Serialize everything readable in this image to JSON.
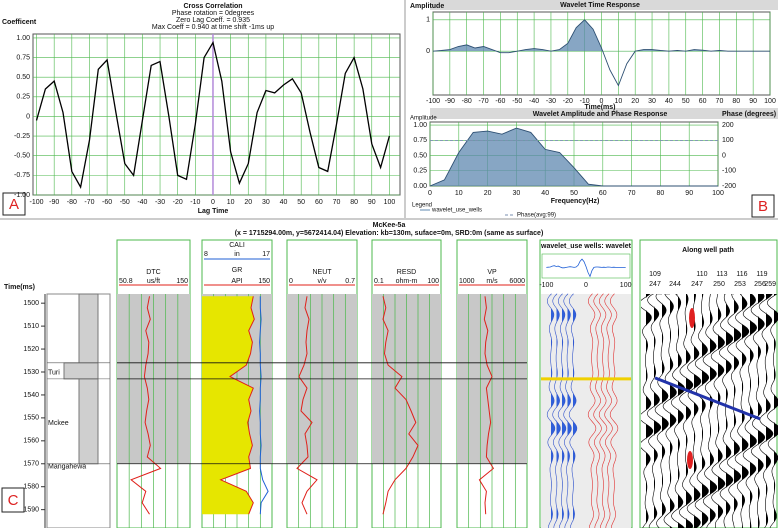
{
  "chart_data": [
    {
      "type": "line",
      "title": "Cross Correlation",
      "annotations": [
        "Phase rotation = 0degrees",
        "Zero Lag Coeff. = 0.935",
        "Max Coeff = 0.940 at time shift -1ms up"
      ],
      "x_label": "Lag Time",
      "y_label": "Coefficent",
      "color": "#000000",
      "grid": true,
      "x": [
        -100,
        -95,
        -90,
        -85,
        -80,
        -75,
        -70,
        -65,
        -60,
        -55,
        -50,
        -45,
        -40,
        -35,
        -30,
        -25,
        -20,
        -15,
        -10,
        -5,
        0,
        5,
        10,
        15,
        20,
        25,
        30,
        35,
        40,
        45,
        50,
        55,
        60,
        65,
        70,
        75,
        80,
        85,
        90,
        95,
        100
      ],
      "values": [
        -0.05,
        0.35,
        0.45,
        0.05,
        -0.7,
        -0.9,
        -0.3,
        0.6,
        0.72,
        0.05,
        -0.6,
        -0.75,
        -0.05,
        0.65,
        0.7,
        0,
        -0.75,
        -0.8,
        -0.1,
        0.75,
        0.94,
        0.45,
        -0.45,
        -0.85,
        -0.6,
        0.05,
        0.33,
        0.3,
        0.4,
        0.48,
        0.3,
        -0.2,
        -0.65,
        -0.7,
        -0.1,
        0.55,
        0.75,
        0.35,
        -0.35,
        -0.65,
        -0.25
      ],
      "xlim": [
        -102,
        106
      ],
      "xticks": [
        -100,
        -90,
        -80,
        -70,
        -60,
        -50,
        -40,
        -30,
        -20,
        -10,
        0,
        10,
        20,
        30,
        40,
        50,
        60,
        70,
        80,
        90,
        100
      ],
      "ylim": [
        -1.0,
        1.05
      ],
      "yticks": [
        {
          "value": 1,
          "label": "1.00"
        },
        0.75,
        {
          "value": 0.5,
          "label": "0.50"
        },
        0.25,
        0,
        -0.25,
        {
          "value": -0.5,
          "label": "-0.50"
        },
        -0.75,
        {
          "value": -1,
          "label": "-1.00"
        }
      ]
    },
    {
      "type": "area",
      "title": "Wavelet Time Response",
      "x_label": "Time(ms)",
      "y_label": "Amplitude",
      "color": "#5f88b0",
      "grid": true,
      "x": [
        -100,
        -95,
        -90,
        -85,
        -80,
        -75,
        -70,
        -65,
        -60,
        -55,
        -50,
        -45,
        -40,
        -35,
        -30,
        -25,
        -20,
        -15,
        -10,
        -5,
        0,
        5,
        10,
        15,
        20,
        25,
        30,
        35,
        40,
        45,
        50,
        55,
        60,
        65,
        70,
        75,
        80,
        85,
        90,
        95,
        100
      ],
      "values": [
        0,
        0.02,
        0.05,
        0.15,
        0.2,
        0.1,
        0.15,
        0.05,
        -0.05,
        -0.05,
        0,
        0.05,
        0.08,
        0.05,
        0,
        0.05,
        0.25,
        0.75,
        1.0,
        0.7,
        0.1,
        -0.6,
        -1.1,
        -0.4,
        0,
        0.05,
        0.05,
        0.02,
        0,
        0.02,
        0,
        0.05,
        0.03,
        0,
        0.02,
        0,
        0,
        0,
        0,
        0,
        0
      ],
      "xlim": [
        -100,
        100
      ],
      "xticks": [
        -100,
        -90,
        -80,
        -70,
        -60,
        -50,
        -40,
        -30,
        -20,
        -10,
        0,
        10,
        20,
        30,
        40,
        50,
        60,
        70,
        80,
        90,
        100
      ],
      "ylim": [
        -1.4,
        1.25
      ],
      "yticks": [
        1,
        0
      ]
    },
    {
      "type": "area",
      "title": "Wavelet Amplitude and Phase Response",
      "x_label": "Frequency(Hz)",
      "y_label": "Amplitude",
      "y2_label": "Phase (degrees)",
      "legend_title": "Legend",
      "grid": true,
      "x": [
        0,
        5,
        10,
        15,
        20,
        25,
        30,
        35,
        40,
        45,
        50,
        55,
        60,
        65,
        70,
        75,
        80,
        85,
        90,
        95,
        100
      ],
      "series": [
        {
          "name": "wavelet_use_wells",
          "color": "#5f88b0",
          "values": [
            0,
            0.1,
            0.55,
            0.88,
            0.9,
            0.85,
            0.95,
            0.88,
            0.6,
            0.55,
            0.3,
            0.03,
            0,
            0,
            0,
            0,
            0,
            0,
            0,
            0,
            0
          ]
        },
        {
          "name": "Phase(avg:99)",
          "color": "#7a8fb0",
          "axis": "y2",
          "dashed": true,
          "values": [
            99,
            99,
            99,
            99,
            99,
            99,
            99,
            99,
            99,
            99,
            99,
            99,
            99,
            99,
            99,
            99,
            99,
            99,
            99,
            99,
            99
          ]
        }
      ],
      "xlim": [
        0,
        100
      ],
      "xticks": [
        0,
        10,
        20,
        30,
        40,
        50,
        60,
        70,
        80,
        90,
        100
      ],
      "ylim": [
        0,
        1.05
      ],
      "yticks": [
        {
          "value": 0,
          "label": "0.00"
        },
        0.25,
        {
          "value": 0.5,
          "label": "0.50"
        },
        0.75,
        {
          "value": 1,
          "label": "1.00"
        }
      ],
      "y2lim": [
        -200,
        220
      ],
      "y2ticks": [
        -200,
        -100,
        0,
        100,
        200
      ]
    },
    {
      "type": "well_log",
      "title": "McKee-5a",
      "subtitle": "(x = 1715294.00m, y=5672414.04) Elevation: kb=130m, suface=0m, SRD:0m (same as surface)",
      "y_label": "Time(ms)",
      "ylim": [
        1496,
        1598
      ],
      "yticks": [
        1500,
        1510,
        1520,
        1530,
        1540,
        1550,
        1560,
        1570,
        1580,
        1590
      ],
      "y": [
        1497,
        1502,
        1507,
        1512,
        1517,
        1522,
        1527,
        1532,
        1537,
        1542,
        1547,
        1552,
        1557,
        1562,
        1567,
        1572,
        1577,
        1582,
        1587,
        1592
      ],
      "tops": [
        {
          "name": "Turi",
          "time": 1526
        },
        {
          "name": "Mckee",
          "time": 1533
        },
        {
          "name": "Mangahewa",
          "time": 1570
        }
      ],
      "tracks": [
        {
          "name": "DTC",
          "unit": "us/ft",
          "xlim": [
            50.8,
            150
          ],
          "color": "#e0201a",
          "values": [
            95,
            92,
            96,
            90,
            94,
            93,
            90,
            88,
            92,
            94,
            91,
            89,
            93,
            96,
            92,
            110,
            70,
            90,
            85,
            95
          ]
        },
        {
          "name": "CALI",
          "unit": "in",
          "xlim": [
            8,
            17
          ],
          "color": "#1f5fd6",
          "values": [
            15.5,
            15.5,
            15.6,
            15.5,
            15.4,
            15.5,
            15.5,
            15.6,
            15.5,
            15.5,
            15.4,
            15.5,
            15.5,
            15.6,
            15.5,
            15.5,
            15.8,
            16.5,
            15.6,
            15.5
          ]
        },
        {
          "name": "GR",
          "unit": "API",
          "xlim": [
            0,
            150
          ],
          "color": "#e0201a",
          "fill": "#e6e600",
          "values": [
            110,
            105,
            112,
            100,
            108,
            104,
            95,
            60,
            110,
            100,
            105,
            98,
            102,
            108,
            100,
            104,
            40,
            95,
            110,
            100
          ]
        },
        {
          "name": "NEUT",
          "unit": "v/v",
          "xlim": [
            0,
            0.7
          ],
          "color": "#e0201a",
          "values": [
            0.2,
            0.18,
            0.22,
            0.2,
            0.19,
            0.2,
            0.17,
            0.12,
            0.2,
            0.16,
            0.14,
            0.25,
            0.18,
            0.2,
            0.21,
            0.1,
            0.3,
            0.2,
            0.15,
            0.2
          ]
        },
        {
          "name": "RESD",
          "unit": "ohm-m",
          "xlim": [
            0.1,
            100
          ],
          "log": true,
          "color": "#e0201a",
          "values": [
            0.3,
            0.4,
            0.3,
            0.5,
            0.4,
            0.35,
            0.5,
            2,
            1,
            3,
            5,
            8,
            4,
            10,
            6,
            3,
            1,
            0.5,
            0.4,
            0.3
          ]
        },
        {
          "name": "VP",
          "unit": "m/s",
          "xlim": [
            1000,
            6000
          ],
          "color": "#e0201a",
          "values": [
            3000,
            3100,
            2950,
            3200,
            3050,
            3000,
            3150,
            3500,
            3100,
            3200,
            3300,
            3400,
            3250,
            3150,
            3100,
            3600,
            2600,
            3100,
            3000,
            3050
          ]
        }
      ],
      "synthetic_title": "wavelet_use wells: wavelet",
      "synthetic_xlim": [
        -116,
        116
      ],
      "synthetic_xticks": [
        -100,
        0,
        100
      ],
      "path_title": "Along well path",
      "trace_labels_top": [
        109,
        110,
        113,
        116,
        119
      ],
      "trace_labels_bottom": [
        247,
        244,
        247,
        250,
        253,
        256,
        259
      ]
    }
  ],
  "panel_labels": [
    "A",
    "B",
    "C"
  ]
}
